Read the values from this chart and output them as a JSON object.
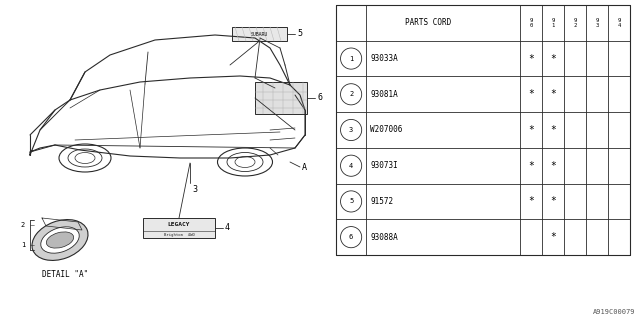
{
  "bg_color": "#ffffff",
  "line_color": "#2a2a2a",
  "parts": [
    {
      "num": "1",
      "code": "93033A",
      "c90": "*",
      "c91": "*",
      "c92": "",
      "c93": "",
      "c94": ""
    },
    {
      "num": "2",
      "code": "93081A",
      "c90": "*",
      "c91": "*",
      "c92": "",
      "c93": "",
      "c94": ""
    },
    {
      "num": "3",
      "code": "W207006",
      "c90": "*",
      "c91": "*",
      "c92": "",
      "c93": "",
      "c94": ""
    },
    {
      "num": "4",
      "code": "93073I",
      "c90": "*",
      "c91": "*",
      "c92": "",
      "c93": "",
      "c94": ""
    },
    {
      "num": "5",
      "code": "91572",
      "c90": "*",
      "c91": "*",
      "c92": "",
      "c93": "",
      "c94": ""
    },
    {
      "num": "6",
      "code": "93088A",
      "c90": "",
      "c91": "*",
      "c92": "",
      "c93": "",
      "c94": ""
    }
  ],
  "col_headers": [
    "9\n0",
    "9\n1",
    "9\n2",
    "9\n3",
    "9\n4"
  ],
  "watermark": "A919C00079"
}
